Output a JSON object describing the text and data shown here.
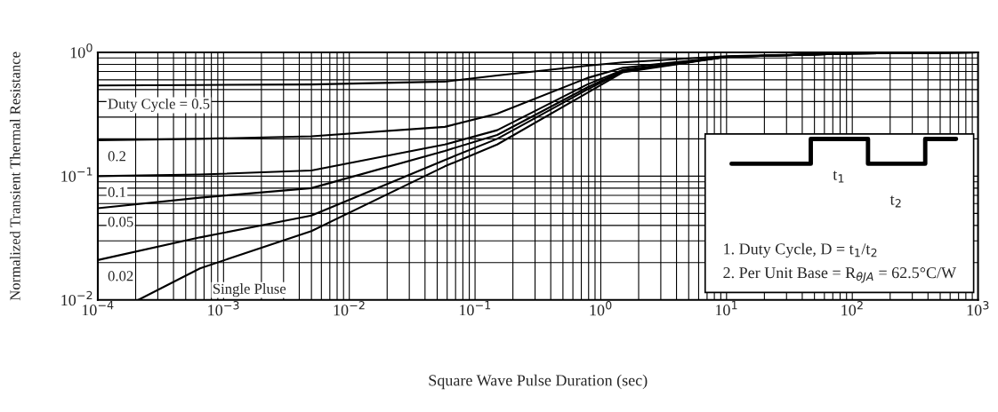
{
  "chart_data": {
    "type": "line",
    "xlabel": "Square Wave Pulse Duration (sec)",
    "ylabel": "Normalized Transient Thermal Resistance",
    "log": "xy",
    "grid": true,
    "line_style": "solid",
    "marker": "none",
    "xlim": [
      0.0001,
      1000
    ],
    "ylim": [
      0.01,
      1
    ],
    "xticks": [
      {
        "value": 0.0001,
        "label": "10$^{−4}$"
      },
      {
        "value": 0.001,
        "label": "10$^{−3}$"
      },
      {
        "value": 0.01,
        "label": "10$^{−2}$"
      },
      {
        "value": 0.1,
        "label": "10$^{−1}$"
      },
      {
        "value": 1,
        "label": "10$^{0}$"
      },
      {
        "value": 10,
        "label": "10$^{1}$"
      },
      {
        "value": 100,
        "label": "10$^{2}$"
      },
      {
        "value": 1000,
        "label": "10$^{3}$"
      }
    ],
    "yticks": [
      {
        "value": 0.01,
        "label": "10$^{−2}$"
      },
      {
        "value": 0.1,
        "label": "10$^{−1}$"
      },
      {
        "value": 1,
        "label": "10$^{0}$"
      }
    ],
    "series": [
      {
        "name": "Duty Cycle = 0.5",
        "color": "#000000",
        "x": [
          0.0001,
          0.00065,
          0.005,
          0.0575,
          0.15,
          0.78,
          1.5,
          10,
          100,
          1000
        ],
        "values": [
          0.54,
          0.545,
          0.55,
          0.58,
          0.65,
          0.78,
          0.83,
          0.93,
          0.98,
          1.0
        ]
      },
      {
        "name": "0.2",
        "color": "#000000",
        "x": [
          0.0001,
          0.00065,
          0.005,
          0.0575,
          0.15,
          0.78,
          1.5,
          10,
          100,
          1000
        ],
        "values": [
          0.195,
          0.2,
          0.21,
          0.25,
          0.32,
          0.62,
          0.75,
          0.92,
          0.98,
          1.0
        ]
      },
      {
        "name": "0.1",
        "color": "#000000",
        "x": [
          0.0001,
          0.00065,
          0.005,
          0.0575,
          0.15,
          0.78,
          1.5,
          10,
          100,
          1000
        ],
        "values": [
          0.1,
          0.103,
          0.111,
          0.18,
          0.235,
          0.55,
          0.72,
          0.92,
          0.98,
          1.0
        ]
      },
      {
        "name": "0.05",
        "color": "#000000",
        "x": [
          0.0001,
          0.00065,
          0.005,
          0.0575,
          0.15,
          0.78,
          1.5,
          10,
          100,
          1000
        ],
        "values": [
          0.055,
          0.067,
          0.08,
          0.16,
          0.215,
          0.52,
          0.71,
          0.92,
          0.98,
          1.0
        ]
      },
      {
        "name": "0.02",
        "color": "#000000",
        "x": [
          0.0001,
          0.00065,
          0.005,
          0.0575,
          0.15,
          0.78,
          1.5,
          10,
          100,
          1000
        ],
        "values": [
          0.021,
          0.032,
          0.048,
          0.135,
          0.2,
          0.5,
          0.7,
          0.92,
          0.98,
          1.0
        ]
      },
      {
        "name": "Single Pluse",
        "color": "#000000",
        "x": [
          0.00021,
          0.00065,
          0.005,
          0.0575,
          0.15,
          0.78,
          1.5,
          10,
          100,
          1000
        ],
        "values": [
          0.01,
          0.018,
          0.036,
          0.12,
          0.18,
          0.47,
          0.69,
          0.92,
          0.98,
          1.0
        ]
      }
    ],
    "annotations": [
      "t$_{1}$",
      "t$_{2}$",
      "1. Duty Cycle, D = t$_{1}$/t$_{2}$",
      "2. Per Unit Base = R$_{θJA}$ = 62.5°C/W"
    ]
  }
}
